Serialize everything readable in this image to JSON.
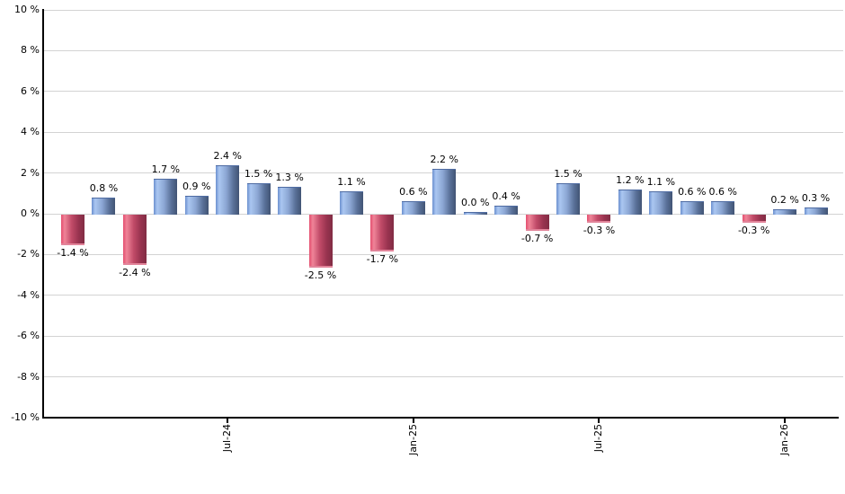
{
  "chart_data": {
    "type": "bar",
    "title": "",
    "xlabel": "",
    "ylabel": "",
    "ylim": [
      -10,
      10
    ],
    "grid": true,
    "legend": false,
    "y_ticks": [
      {
        "value": 10,
        "label": "10 %"
      },
      {
        "value": 8,
        "label": "8 %"
      },
      {
        "value": 6,
        "label": "6 %"
      },
      {
        "value": 4,
        "label": "4 %"
      },
      {
        "value": 2,
        "label": "2 %"
      },
      {
        "value": 0,
        "label": "0 %"
      },
      {
        "value": -2,
        "label": "-2 %"
      },
      {
        "value": -4,
        "label": "-4 %"
      },
      {
        "value": -6,
        "label": "-6 %"
      },
      {
        "value": -8,
        "label": "-8 %"
      },
      {
        "value": -10,
        "label": "-10 %"
      }
    ],
    "x_axis_ticks": [
      {
        "label": "Jul-24",
        "bar_index": 5
      },
      {
        "label": "Jan-25",
        "bar_index": 11
      },
      {
        "label": "Jul-25",
        "bar_index": 17
      },
      {
        "label": "Jan-26",
        "bar_index": 23
      }
    ],
    "values": [
      -1.4,
      0.8,
      -2.4,
      1.7,
      0.9,
      2.4,
      1.5,
      1.3,
      -2.5,
      1.1,
      -1.7,
      0.6,
      2.2,
      0.0,
      0.4,
      -0.7,
      1.5,
      -0.3,
      1.2,
      1.1,
      0.6,
      0.6,
      -0.3,
      0.2,
      0.3
    ],
    "bar_labels": [
      "-1.4 %",
      "0.8 %",
      "-2.4 %",
      "1.7 %",
      "0.9 %",
      "2.4 %",
      "1.5 %",
      "1.3 %",
      "-2.5 %",
      "1.1 %",
      "-1.7 %",
      "0.6 %",
      "2.2 %",
      "0.0 %",
      "0.4 %",
      "-0.7 %",
      "1.5 %",
      "-0.3 %",
      "1.2 %",
      "1.1 %",
      "0.6 %",
      "0.6 %",
      "-0.3 %",
      "0.2 %",
      "0.3 %"
    ],
    "colors": {
      "positive_bar": "#7b9bd6",
      "negative_bar": "#cf4f6e",
      "gridline": "#d3d3d3",
      "axis": "#000000",
      "text": "#000000",
      "background": "#ffffff"
    }
  }
}
